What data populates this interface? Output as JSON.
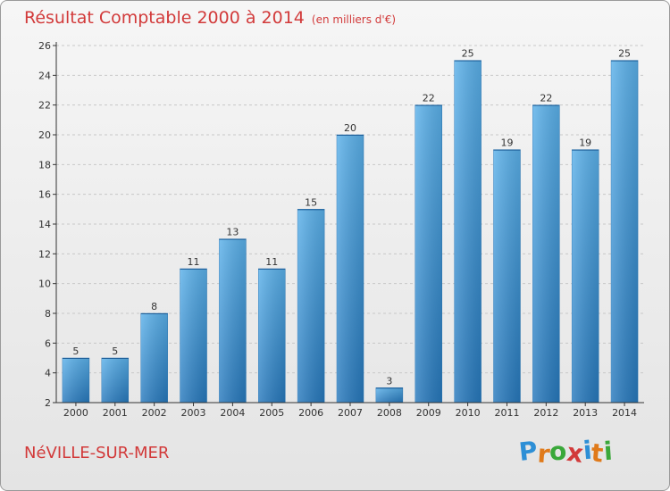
{
  "chart_data": {
    "type": "bar",
    "title": "Résultat Comptable 2000 à 2014",
    "subtitle": "(en milliers d'€)",
    "categories": [
      "2000",
      "2001",
      "2002",
      "2003",
      "2004",
      "2005",
      "2006",
      "2007",
      "2008",
      "2009",
      "2010",
      "2011",
      "2012",
      "2013",
      "2014"
    ],
    "values": [
      5,
      5,
      8,
      11,
      13,
      11,
      15,
      20,
      3,
      22,
      25,
      19,
      22,
      19,
      25
    ],
    "ylim": [
      2,
      26
    ],
    "yticks": [
      2,
      4,
      6,
      8,
      10,
      12,
      14,
      16,
      18,
      20,
      22,
      24,
      26
    ],
    "xlabel": "",
    "ylabel": "",
    "grid": true,
    "bar_color": "#3c96d8"
  },
  "commune": "NéVILLE-SUR-MER",
  "brand": {
    "letters": [
      "P",
      "r",
      "o",
      "x",
      "i",
      "t",
      "i"
    ],
    "colors": [
      "#2d8fd6",
      "#e07a1a",
      "#3aa83a",
      "#d23a3a",
      "#2d8fd6",
      "#e07a1a",
      "#3aa83a"
    ]
  },
  "colors": {
    "title": "#d23a3a",
    "axis": "#333333",
    "grid": "#c8c8c8"
  }
}
